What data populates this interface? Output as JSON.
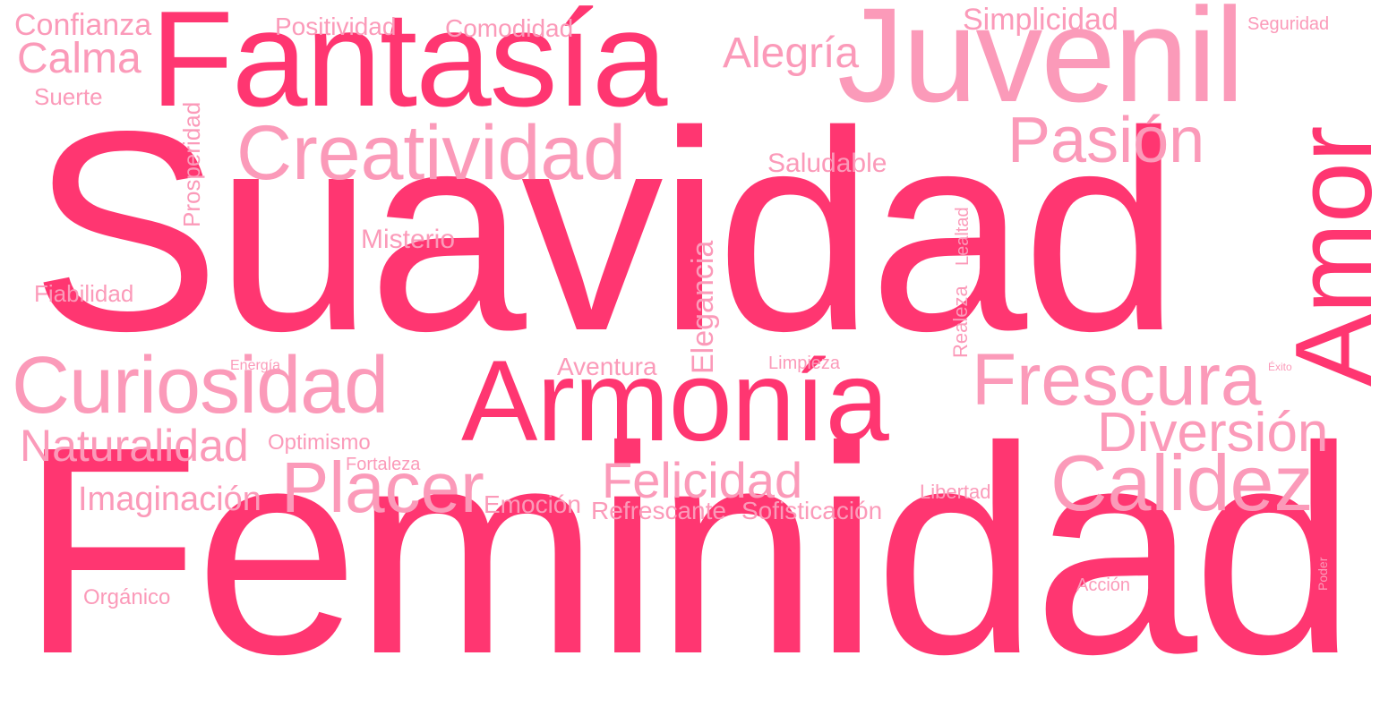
{
  "cloud": {
    "colors": {
      "strong": "#ff3671",
      "light": "#fb9ab9",
      "background": "#ffffff"
    },
    "words": {
      "feminidad": "Feminidad",
      "suavidad": "Suavidad",
      "fantasia": "Fantasía",
      "juvenil": "Juvenil",
      "amor": "Amor",
      "armonia": "Armonía",
      "creatividad": "Creatividad",
      "curiosidad": "Curiosidad",
      "frescura": "Frescura",
      "calidez": "Calidez",
      "placer": "Placer",
      "pasion": "Pasión",
      "felicidad": "Felicidad",
      "diversion": "Diversión",
      "naturalidad": "Naturalidad",
      "alegria": "Alegría",
      "calma": "Calma",
      "confianza": "Confianza",
      "simplicidad": "Simplicidad",
      "imaginacion": "Imaginación",
      "positividad": "Positividad",
      "comodidad": "Comodidad",
      "saludable": "Saludable",
      "misterio": "Misterio",
      "elegancia": "Elegancia",
      "fiabilidad": "Fiabilidad",
      "suerte": "Suerte",
      "prosperidad": "Prosperidad",
      "seguridad": "Seguridad",
      "lealtad": "Lealtad",
      "realeza": "Realeza",
      "aventura": "Aventura",
      "limpieza": "Limpieza",
      "exito": "Éxito",
      "energia": "Energía",
      "optimismo": "Optimismo",
      "fortaleza": "Fortaleza",
      "emocion": "Emoción",
      "refrescante": "Refrescante",
      "sofisticacion": "Sofisticación",
      "libertad": "Libertad",
      "organico": "Orgánico",
      "accion": "Acción",
      "poder": "Poder"
    }
  }
}
